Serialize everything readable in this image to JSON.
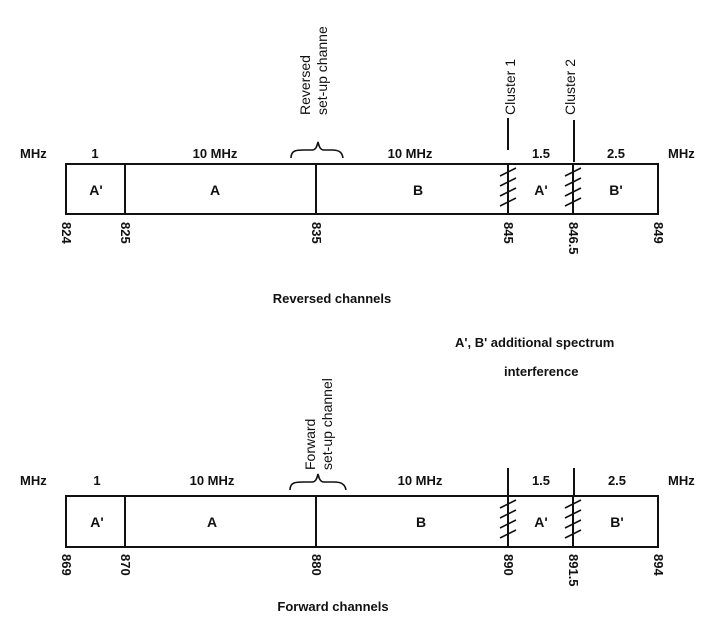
{
  "unit_left": "MHz",
  "unit_right": "MHz",
  "reverse": {
    "top_labels": [
      "1",
      "10 MHz",
      "10 MHz",
      "1.5",
      "2.5"
    ],
    "segments": [
      "A'",
      "A",
      "B",
      "A'",
      "B'"
    ],
    "ticks": [
      "824",
      "825",
      "835",
      "845",
      "846.5",
      "849"
    ],
    "setup_label_line1": "Reversed",
    "setup_label_line2": "set-up channe",
    "cluster1": "Cluster 1",
    "cluster2": "Cluster 2",
    "caption": "Reversed channels"
  },
  "forward": {
    "top_labels": [
      "1",
      "10 MHz",
      "10 MHz",
      "1.5",
      "2.5"
    ],
    "segments": [
      "A'",
      "A",
      "B",
      "A'",
      "B'"
    ],
    "ticks": [
      "869",
      "870",
      "880",
      "890",
      "891.5",
      "894"
    ],
    "setup_label_line1": "Forward",
    "setup_label_line2": "set-up channel",
    "caption": "Forward channels"
  },
  "legend": {
    "line1": "A', B' additional spectrum",
    "line2": "interference"
  }
}
